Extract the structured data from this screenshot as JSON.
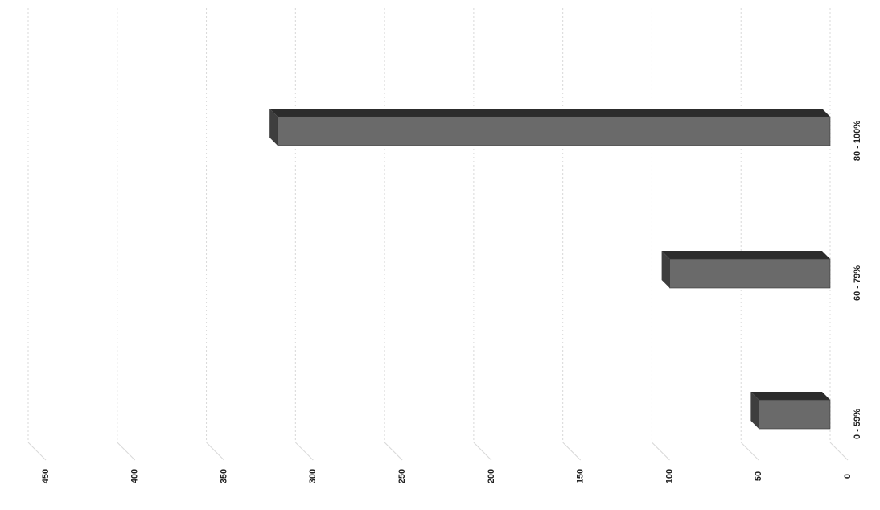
{
  "chart_data": {
    "type": "bar",
    "orientation": "horizontal-3d",
    "rotated": "90deg-clockwise",
    "categories": [
      "80 - 100%",
      "60 - 79%",
      "0 - 59%"
    ],
    "values": [
      310,
      90,
      40
    ],
    "value_ticks": [
      "0",
      "50",
      "100",
      "150",
      "200",
      "250",
      "300",
      "350",
      "400",
      "450"
    ],
    "ylim": [
      0,
      450
    ],
    "grid": true,
    "legend": "none",
    "colors": {
      "bar_front": "#6a6a6a",
      "bar_top": "#2c2c2c",
      "bar_side": "#3e3e3e",
      "grid": "#d8d8d8"
    }
  }
}
